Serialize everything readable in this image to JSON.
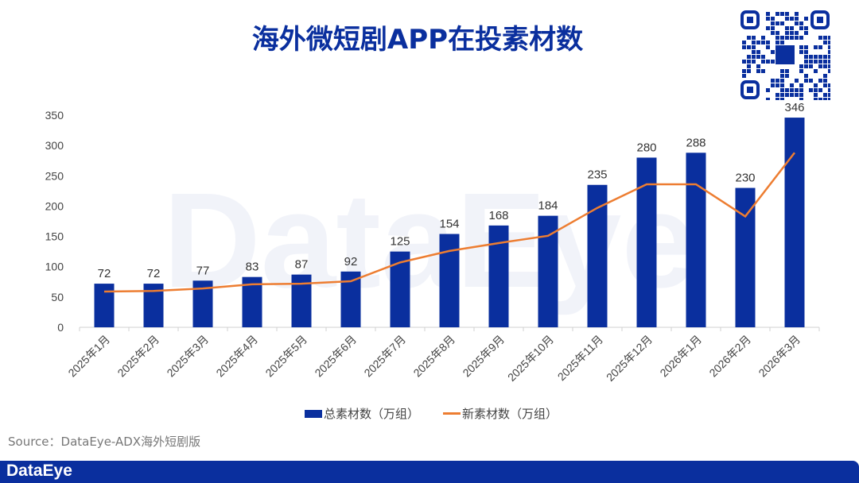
{
  "title": "海外微短剧APP在投素材数",
  "watermark": "DataEye",
  "source": "Source：DataEye-ADX海外短剧版",
  "footer_brand": "DataEye",
  "colors": {
    "bar": "#0a2f9e",
    "line": "#ed7d31",
    "brand": "#0a2f9e"
  },
  "chart_data": {
    "type": "bar",
    "title": "海外微短剧APP在投素材数",
    "categories": [
      "2025年1月",
      "2025年2月",
      "2025年3月",
      "2025年4月",
      "2025年5月",
      "2025年6月",
      "2025年7月",
      "2025年8月",
      "2025年9月",
      "2025年10月",
      "2025年11月",
      "2025年12月",
      "2026年1月",
      "2026年2月",
      "2026年3月"
    ],
    "series": [
      {
        "name": "总素材数（万组）",
        "type": "bar",
        "values": [
          72,
          72,
          77,
          83,
          87,
          92,
          125,
          154,
          168,
          184,
          235,
          280,
          288,
          230,
          346
        ]
      },
      {
        "name": "新素材数（万组）",
        "type": "line",
        "values": [
          59,
          60,
          64,
          71,
          72,
          76,
          107,
          126,
          139,
          151,
          197,
          236,
          236,
          183,
          288
        ]
      }
    ],
    "yticks": [
      0,
      50,
      100,
      150,
      200,
      250,
      300,
      350
    ],
    "ylim": [
      0,
      350
    ],
    "legend": "bottom",
    "xlabel": "",
    "ylabel": ""
  }
}
